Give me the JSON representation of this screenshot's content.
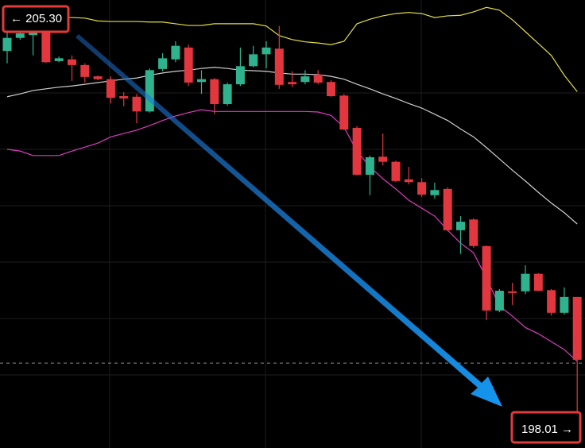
{
  "chart_data": {
    "type": "candlestick",
    "ylim": [
      197.69,
      205.61
    ],
    "up_color": "#2fb38e",
    "down_color": "#e2373f",
    "open": [
      204.71,
      204.94,
      204.99,
      205.05,
      204.53,
      204.56,
      204.46,
      204.26,
      204.21,
      203.91,
      203.9,
      203.64,
      204.39,
      204.56,
      204.77,
      204.16,
      204.21,
      203.77,
      204.12,
      204.44,
      204.65,
      204.75,
      204.16,
      204.16,
      204.29,
      204.16,
      203.92,
      203.35,
      202.52,
      202.84,
      202.75,
      202.44,
      202.39,
      202.16,
      202.27,
      201.54,
      201.73,
      201.26,
      200.12,
      200.46,
      200.46,
      200.77,
      200.48,
      200.08,
      200.36
    ],
    "high": [
      205.05,
      205.05,
      205.08,
      205.08,
      204.61,
      204.63,
      204.49,
      204.28,
      204.26,
      203.98,
      203.95,
      204.4,
      204.67,
      204.88,
      204.82,
      204.37,
      204.23,
      204.15,
      204.77,
      204.8,
      204.88,
      205.15,
      204.35,
      204.37,
      204.37,
      204.19,
      203.95,
      203.38,
      202.86,
      203.25,
      202.77,
      202.66,
      202.46,
      202.38,
      202.3,
      201.79,
      201.75,
      201.27,
      200.5,
      200.61,
      200.92,
      200.78,
      200.5,
      200.53,
      200.36
    ],
    "low": [
      204.49,
      204.91,
      204.63,
      204.5,
      204.51,
      204.18,
      204.15,
      204.19,
      203.78,
      203.73,
      203.43,
      203.62,
      204.35,
      204.51,
      204.09,
      203.95,
      203.59,
      203.74,
      204.09,
      204.42,
      204.4,
      204.04,
      204.07,
      204.12,
      204.12,
      203.9,
      203.31,
      202.51,
      202.16,
      202.69,
      202.39,
      202.35,
      202.13,
      202.1,
      201.52,
      201.12,
      201.23,
      199.95,
      200.09,
      200.22,
      200.41,
      200.46,
      200.03,
      200.05,
      198.01
    ],
    "close": [
      204.94,
      205.02,
      205.05,
      204.51,
      204.58,
      204.46,
      204.25,
      204.21,
      203.88,
      203.87,
      203.64,
      204.37,
      204.58,
      204.8,
      204.15,
      204.21,
      203.77,
      204.12,
      204.44,
      204.65,
      204.77,
      204.11,
      204.12,
      204.26,
      204.15,
      203.91,
      203.32,
      202.52,
      202.83,
      202.75,
      202.41,
      202.39,
      202.17,
      202.25,
      201.54,
      201.69,
      201.26,
      200.12,
      200.47,
      200.43,
      200.77,
      200.47,
      200.08,
      200.36,
      199.25
    ],
    "bands": [
      {
        "name": "upper",
        "color": "#e4de45",
        "values": [
          205.22,
          205.27,
          205.3,
          205.3,
          205.3,
          205.3,
          205.29,
          205.24,
          205.23,
          205.23,
          205.23,
          205.22,
          205.22,
          205.19,
          205.16,
          205.16,
          205.19,
          205.19,
          205.19,
          205.19,
          205.15,
          204.98,
          204.91,
          204.87,
          204.85,
          204.82,
          204.88,
          205.19,
          205.27,
          205.33,
          205.37,
          205.39,
          205.37,
          205.3,
          205.33,
          205.34,
          205.4,
          205.48,
          205.43,
          205.26,
          205.05,
          204.84,
          204.63,
          204.28,
          203.99
        ]
      },
      {
        "name": "middle",
        "color": "#cfcfcf",
        "values": [
          203.9,
          203.95,
          204.01,
          204.04,
          204.07,
          204.09,
          204.12,
          204.15,
          204.18,
          204.21,
          204.23,
          204.28,
          204.32,
          204.35,
          204.37,
          204.4,
          204.42,
          204.4,
          204.37,
          204.36,
          204.35,
          204.32,
          204.3,
          204.3,
          204.29,
          204.26,
          204.21,
          204.12,
          204.04,
          203.95,
          203.87,
          203.78,
          203.7,
          203.59,
          203.48,
          203.33,
          203.19,
          203.0,
          202.8,
          202.6,
          202.41,
          202.21,
          202.02,
          201.85,
          201.65
        ]
      },
      {
        "name": "lower",
        "color": "#dc3cc0",
        "values": [
          202.97,
          202.94,
          202.86,
          202.86,
          202.86,
          202.94,
          203.01,
          203.08,
          203.19,
          203.25,
          203.31,
          203.39,
          203.48,
          203.56,
          203.62,
          203.67,
          203.64,
          203.64,
          203.64,
          203.64,
          203.64,
          203.64,
          203.64,
          203.64,
          203.63,
          203.57,
          203.36,
          202.94,
          202.66,
          202.45,
          202.27,
          202.07,
          201.93,
          201.79,
          201.54,
          201.31,
          201.14,
          200.69,
          200.2,
          200.02,
          199.82,
          199.71,
          199.57,
          199.43,
          199.22
        ]
      }
    ],
    "price_line": 199.19,
    "start_label": "← 205.30",
    "end_label": "198.01 →"
  }
}
